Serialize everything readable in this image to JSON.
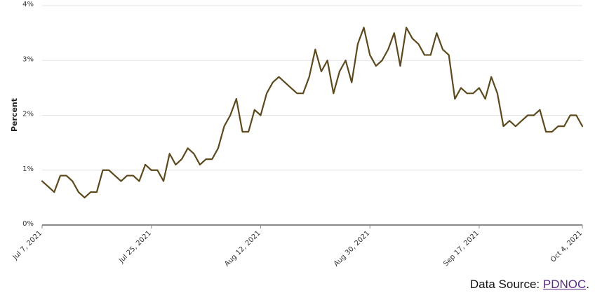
{
  "chart_data": {
    "type": "line",
    "title": "",
    "ylabel": "Percent",
    "xlabel": "",
    "ylim": [
      0,
      4
    ],
    "yticks": [
      0,
      1,
      2,
      3,
      4
    ],
    "ytick_labels": [
      "0%",
      "1%",
      "2%",
      "3%",
      "4%"
    ],
    "xlim": [
      "2021-07-07",
      "2021-10-04"
    ],
    "xticks": [
      "2021-07-07",
      "2021-07-25",
      "2021-08-12",
      "2021-08-30",
      "2021-09-17",
      "2021-10-04"
    ],
    "xtick_labels": [
      "Jul 7, 2021",
      "Jul 25, 2021",
      "Aug 12, 2021",
      "Aug 30, 2021",
      "Sep 17, 2021",
      "Oct 4, 2021"
    ],
    "grid": true,
    "color": "#5c4a1e",
    "series": [
      {
        "x": [
          "2021-07-07",
          "2021-07-08",
          "2021-07-09",
          "2021-07-10",
          "2021-07-11",
          "2021-07-12",
          "2021-07-13",
          "2021-07-14",
          "2021-07-15",
          "2021-07-16",
          "2021-07-17",
          "2021-07-18",
          "2021-07-19",
          "2021-07-20",
          "2021-07-21",
          "2021-07-22",
          "2021-07-23",
          "2021-07-24",
          "2021-07-25",
          "2021-07-26",
          "2021-07-27",
          "2021-07-28",
          "2021-07-29",
          "2021-07-30",
          "2021-07-31",
          "2021-08-01",
          "2021-08-02",
          "2021-08-03",
          "2021-08-04",
          "2021-08-05",
          "2021-08-06",
          "2021-08-07",
          "2021-08-08",
          "2021-08-09",
          "2021-08-10",
          "2021-08-11",
          "2021-08-12",
          "2021-08-13",
          "2021-08-14",
          "2021-08-15",
          "2021-08-16",
          "2021-08-17",
          "2021-08-18",
          "2021-08-19",
          "2021-08-20",
          "2021-08-21",
          "2021-08-22",
          "2021-08-23",
          "2021-08-24",
          "2021-08-25",
          "2021-08-26",
          "2021-08-27",
          "2021-08-28",
          "2021-08-29",
          "2021-08-30",
          "2021-08-31",
          "2021-09-01",
          "2021-09-02",
          "2021-09-03",
          "2021-09-04",
          "2021-09-05",
          "2021-09-06",
          "2021-09-07",
          "2021-09-08",
          "2021-09-09",
          "2021-09-10",
          "2021-09-11",
          "2021-09-12",
          "2021-09-13",
          "2021-09-14",
          "2021-09-15",
          "2021-09-16",
          "2021-09-17",
          "2021-09-18",
          "2021-09-19",
          "2021-09-20",
          "2021-09-21",
          "2021-09-22",
          "2021-09-23",
          "2021-09-24",
          "2021-09-25",
          "2021-09-26",
          "2021-09-27",
          "2021-09-28",
          "2021-09-29",
          "2021-09-30",
          "2021-10-01",
          "2021-10-02",
          "2021-10-03",
          "2021-10-04"
        ],
        "y": [
          0.8,
          0.7,
          0.6,
          0.9,
          0.9,
          0.8,
          0.6,
          0.5,
          0.6,
          0.6,
          1.0,
          1.0,
          0.9,
          0.8,
          0.9,
          0.9,
          0.8,
          1.1,
          1.0,
          1.0,
          0.8,
          1.3,
          1.1,
          1.2,
          1.4,
          1.3,
          1.1,
          1.2,
          1.2,
          1.4,
          1.8,
          2.0,
          2.3,
          1.7,
          1.7,
          2.1,
          2.0,
          2.4,
          2.6,
          2.7,
          2.6,
          2.5,
          2.4,
          2.4,
          2.7,
          3.2,
          2.8,
          3.0,
          2.4,
          2.8,
          3.0,
          2.6,
          3.3,
          3.6,
          3.1,
          2.9,
          3.0,
          3.2,
          3.5,
          2.9,
          3.6,
          3.4,
          3.3,
          3.1,
          3.1,
          3.5,
          3.2,
          3.1,
          2.3,
          2.5,
          2.4,
          2.4,
          2.5,
          2.3,
          2.7,
          2.4,
          1.8,
          1.9,
          1.8,
          1.9,
          2.0,
          2.0,
          2.1,
          1.7,
          1.7,
          1.8,
          1.8,
          2.0,
          2.0,
          1.8
        ]
      }
    ]
  },
  "source": {
    "prefix": "Data Source: ",
    "link": "PDNOC",
    "suffix": "."
  }
}
